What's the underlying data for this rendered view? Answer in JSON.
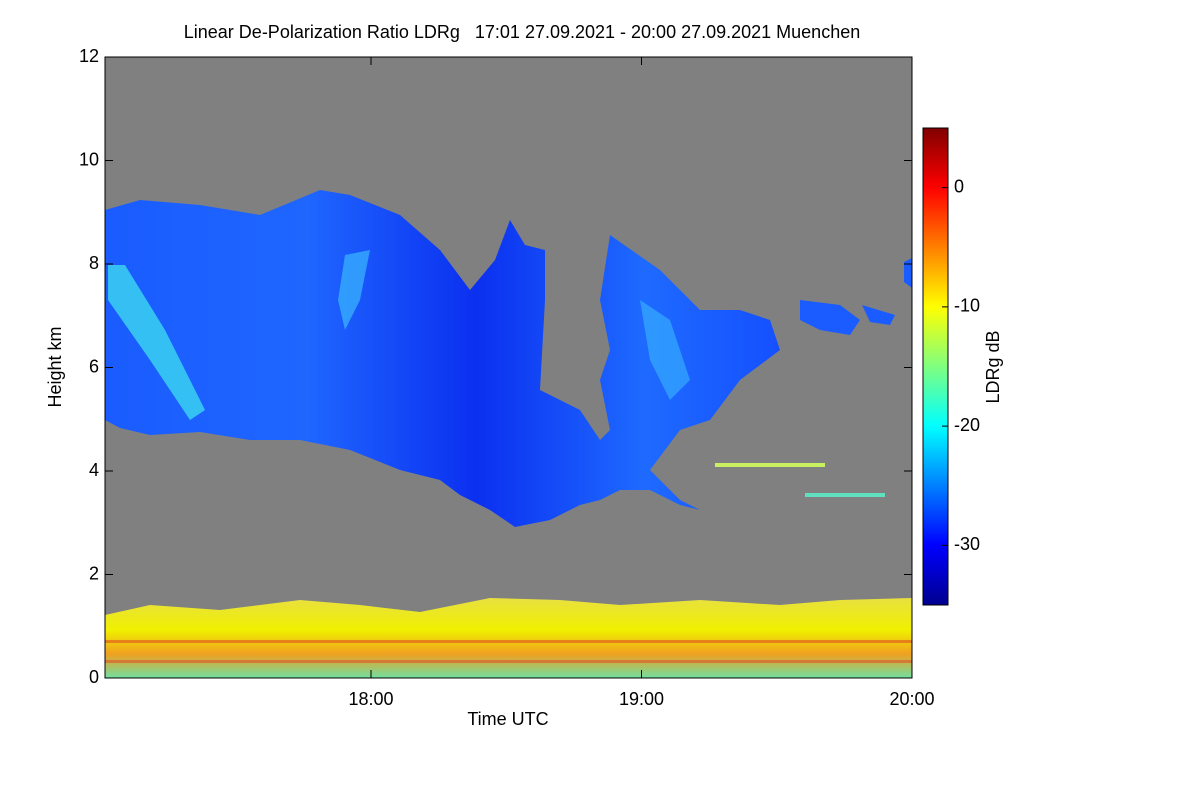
{
  "chart_data": {
    "type": "heatmap",
    "title": "Linear De-Polarization Ratio LDRg   17:01 27.09.2021 - 20:00 27.09.2021 Muenchen",
    "x_label": "Time UTC",
    "y_label": "Height km",
    "colorbar_label": "LDRg dB",
    "xlim": [
      17.0167,
      20.0
    ],
    "xticks": [
      {
        "value": 18,
        "label": "18:00"
      },
      {
        "value": 19,
        "label": "19:00"
      },
      {
        "value": 20,
        "label": "20:00"
      }
    ],
    "ylim": [
      0,
      12
    ],
    "yticks": [
      0,
      2,
      4,
      6,
      8,
      10,
      12
    ],
    "clim": [
      -35,
      5
    ],
    "cticks": [
      0,
      -10,
      -20,
      -30
    ],
    "colormap": "jet"
  }
}
